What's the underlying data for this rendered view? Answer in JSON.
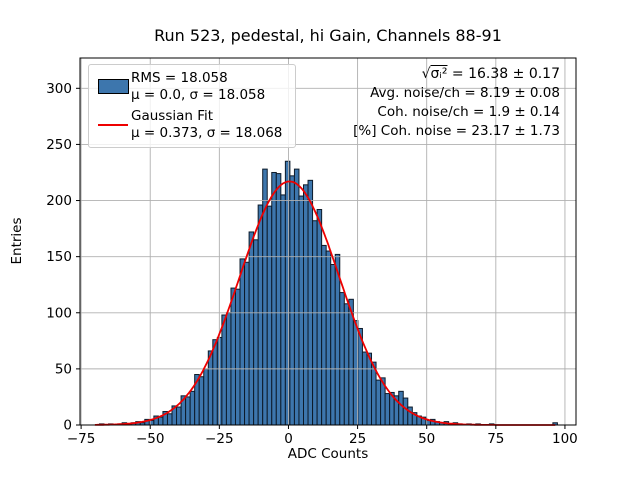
{
  "figure": {
    "background": "#ffffff"
  },
  "chart_data": {
    "type": "bar",
    "variant": "histogram-with-gaussian-fit",
    "title": "Run 523, pedestal, hi Gain, Channels 88-91",
    "xlabel": "ADC Counts",
    "ylabel": "Entries",
    "xlim": [
      -75.4,
      104
    ],
    "ylim": [
      0,
      327
    ],
    "xticks": [
      -75,
      -50,
      -25,
      0,
      25,
      50,
      75,
      100
    ],
    "yticks": [
      0,
      50,
      100,
      150,
      200,
      250,
      300
    ],
    "grid": true,
    "grid_color": "#b0b0b0",
    "bar_color": "#3d76ad",
    "bar_edge_color": "#0d1b2a",
    "histogram": {
      "bin_start": -70.0,
      "bin_width": 1.64,
      "heights": [
        0,
        1,
        0,
        1,
        0,
        1,
        2,
        1,
        2,
        3,
        2,
        5,
        4,
        8,
        7,
        12,
        10,
        17,
        16,
        26,
        25,
        30,
        45,
        43,
        50,
        66,
        76,
        78,
        98,
        100,
        122,
        121,
        148,
        145,
        172,
        165,
        196,
        228,
        195,
        225,
        224,
        205,
        235,
        222,
        228,
        204,
        214,
        218,
        182,
        192,
        160,
        155,
        143,
        152,
        118,
        108,
        112,
        93,
        86,
        65,
        64,
        56,
        40,
        42,
        28,
        29,
        26,
        30,
        24,
        16,
        11,
        8,
        7,
        4,
        5,
        3,
        2,
        3,
        1,
        2,
        1,
        0,
        1,
        0,
        1,
        0,
        0,
        1,
        0,
        0,
        0,
        0,
        0,
        0,
        0,
        0,
        0,
        0,
        0,
        0,
        0,
        2
      ]
    },
    "fit": {
      "type": "gaussian",
      "mu": 0.373,
      "sigma": 18.068,
      "amplitude": 217,
      "domain": [
        -70,
        96.5
      ],
      "color": "#ee0000"
    },
    "legend": {
      "items": [
        {
          "swatch": "patch",
          "color": "#3d76ad",
          "line1": "RMS = 18.058",
          "line2": "μ = 0.0, σ = 18.058"
        },
        {
          "swatch": "line",
          "color": "#ee0000",
          "line1": "Gaussian Fit",
          "line2": "μ = 0.373, σ = 18.068"
        }
      ]
    },
    "stats": {
      "line1_prefix": "√",
      "line1_radicand": "σᵢ²",
      "line1_rest": " = 16.38 ± 0.17",
      "line2": "Avg. noise/ch = 8.19 ± 0.08",
      "line3": "Coh. noise/ch = 1.9 ± 0.14",
      "line4": "[%] Coh. noise = 23.17 ± 1.73"
    }
  }
}
